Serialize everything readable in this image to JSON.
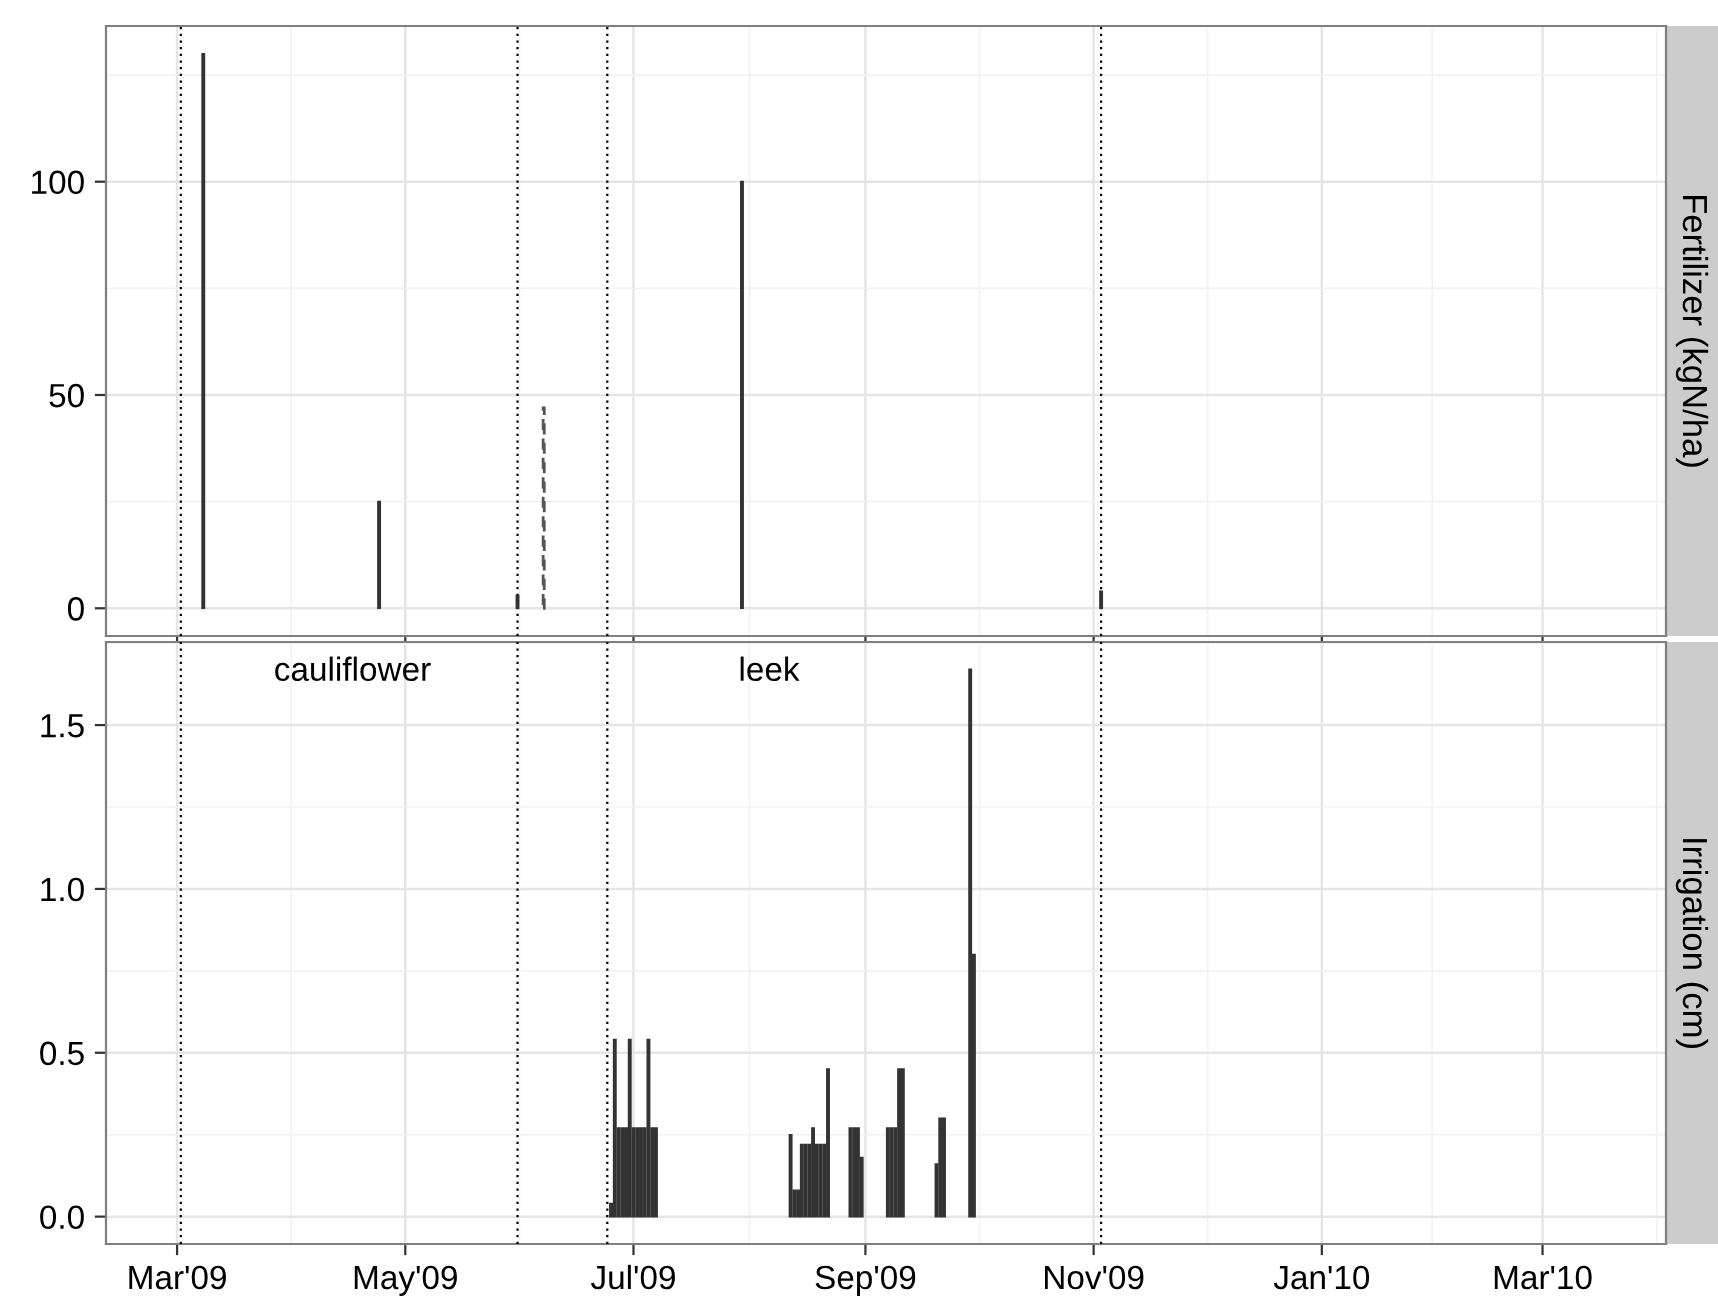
{
  "chart_data": [
    {
      "type": "bar",
      "ylabel": "Fertilizer (kgN/ha)",
      "tick_labels": "y",
      "grid": true,
      "xlim": [
        "2009-02-10",
        "2010-04-03"
      ],
      "xticks": [
        {
          "value": "2009-03-01",
          "label": null
        },
        {
          "value": "2009-05-01",
          "label": null
        },
        {
          "value": "2009-07-01",
          "label": null
        },
        {
          "value": "2009-09-01",
          "label": null
        },
        {
          "value": "2009-11-01",
          "label": null
        },
        {
          "value": "2010-01-01",
          "label": null
        },
        {
          "value": "2010-03-01",
          "label": null
        }
      ],
      "ylim": [
        -6.5,
        136.5
      ],
      "yticks": [
        0,
        50,
        100
      ],
      "series": [
        {
          "color": "#333333",
          "line_style": "solid",
          "x": [
            "2009-03-08",
            "2009-04-24",
            "2009-05-31",
            "2009-07-30",
            "2009-11-03"
          ],
          "values": [
            130,
            25,
            3,
            100,
            4
          ]
        },
        {
          "color": "#555555",
          "line_style": "dashed",
          "x": [
            "2009-06-07"
          ],
          "values": [
            47
          ]
        }
      ],
      "ref_lines": [
        {
          "axis": "x",
          "value": "2009-03-02",
          "color": "#000000",
          "line_style": "dotted"
        },
        {
          "axis": "x",
          "value": "2009-05-31",
          "color": "#000000",
          "line_style": "dotted"
        },
        {
          "axis": "x",
          "value": "2009-06-24",
          "color": "#000000",
          "line_style": "dotted"
        },
        {
          "axis": "x",
          "value": "2009-11-03",
          "color": "#000000",
          "line_style": "dotted"
        }
      ]
    },
    {
      "type": "bar",
      "ylabel": "Irrigation (cm)",
      "grid": true,
      "xlim": [
        "2009-02-10",
        "2010-04-03"
      ],
      "xticks": [
        {
          "value": "2009-03-01",
          "label": "Mar'09"
        },
        {
          "value": "2009-05-01",
          "label": "May'09"
        },
        {
          "value": "2009-07-01",
          "label": "Jul'09"
        },
        {
          "value": "2009-09-01",
          "label": "Sep'09"
        },
        {
          "value": "2009-11-01",
          "label": "Nov'09"
        },
        {
          "value": "2010-01-01",
          "label": "Jan'10"
        },
        {
          "value": "2010-03-01",
          "label": "Mar'10"
        }
      ],
      "ylim": [
        -0.0835,
        1.7535
      ],
      "yticks": [
        {
          "value": 0,
          "label": "0.0"
        },
        {
          "value": 0.5,
          "label": "0.5"
        },
        {
          "value": 1.0,
          "label": "1.0"
        },
        {
          "value": 1.5,
          "label": "1.5"
        }
      ],
      "series": [
        {
          "color": "#333333",
          "line_style": "solid",
          "x": [
            "2009-06-25",
            "2009-06-26",
            "2009-06-27",
            "2009-06-28",
            "2009-06-29",
            "2009-06-30",
            "2009-07-01",
            "2009-07-02",
            "2009-07-03",
            "2009-07-04",
            "2009-07-05",
            "2009-07-06",
            "2009-07-07",
            "2009-08-12",
            "2009-08-13",
            "2009-08-14",
            "2009-08-15",
            "2009-08-16",
            "2009-08-17",
            "2009-08-18",
            "2009-08-19",
            "2009-08-20",
            "2009-08-21",
            "2009-08-22",
            "2009-08-28",
            "2009-08-29",
            "2009-08-30",
            "2009-08-31",
            "2009-09-07",
            "2009-09-08",
            "2009-09-09",
            "2009-09-10",
            "2009-09-11",
            "2009-09-20",
            "2009-09-21",
            "2009-09-22",
            "2009-09-29",
            "2009-09-30"
          ],
          "values": [
            0.04,
            0.54,
            0.27,
            0.27,
            0.27,
            0.54,
            0.27,
            0.27,
            0.27,
            0.27,
            0.54,
            0.27,
            0.27,
            0.25,
            0.08,
            0.08,
            0.22,
            0.22,
            0.22,
            0.27,
            0.22,
            0.22,
            0.22,
            0.45,
            0.27,
            0.27,
            0.27,
            0.18,
            0.27,
            0.27,
            0.27,
            0.45,
            0.45,
            0.16,
            0.3,
            0.3,
            1.67,
            0.8
          ]
        }
      ],
      "ref_lines": [
        {
          "axis": "x",
          "value": "2009-03-02",
          "color": "#000000",
          "line_style": "dotted"
        },
        {
          "axis": "x",
          "value": "2009-05-31",
          "color": "#000000",
          "line_style": "dotted"
        },
        {
          "axis": "x",
          "value": "2009-06-24",
          "color": "#000000",
          "line_style": "dotted"
        },
        {
          "axis": "x",
          "value": "2009-11-03",
          "color": "#000000",
          "line_style": "dotted"
        }
      ],
      "annotations": [
        "cauliflower",
        "leek"
      ]
    }
  ]
}
